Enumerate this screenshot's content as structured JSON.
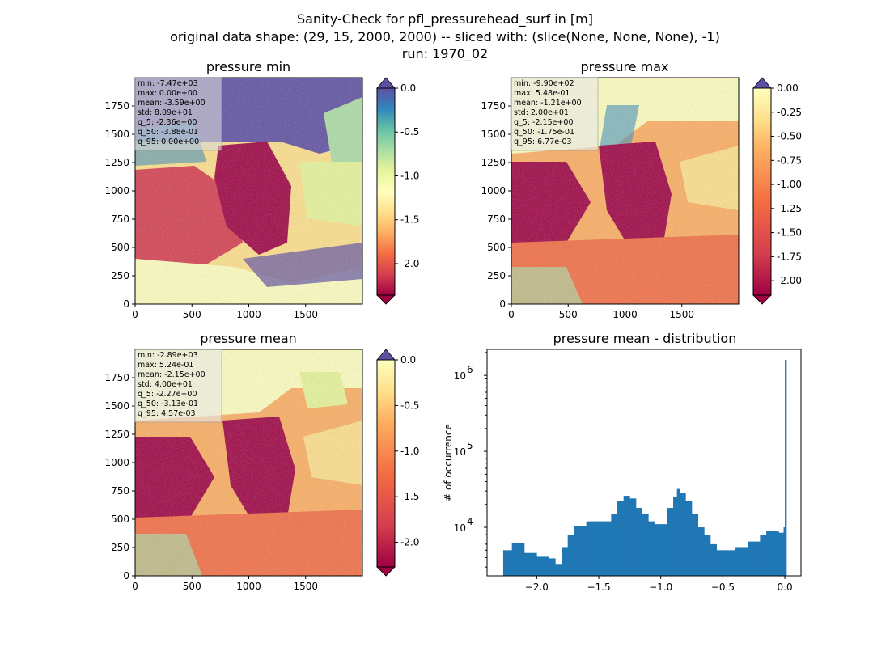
{
  "figure": {
    "title_lines": [
      "Sanity-Check for pfl_pressurehead_surf in [m]",
      "original data shape: (29, 15, 2000, 2000) -- sliced with: (slice(None, None, None), -1)",
      "run: 1970_02"
    ]
  },
  "panels": [
    {
      "title": "pressure min",
      "colormap": "Spectral",
      "colorbar": {
        "min": -2.36,
        "max": 0.0,
        "ticks": [
          "0.0",
          "-0.5",
          "-1.0",
          "-1.5",
          "-2.0"
        ],
        "tick_values": [
          0,
          -0.5,
          -1.0,
          -1.5,
          -2.0
        ],
        "extend_top_color": "#5e4fa2",
        "extend_bottom_color": "#9e0142"
      },
      "x_ticks": [
        "0",
        "500",
        "1000",
        "1500"
      ],
      "y_ticks": [
        "0",
        "250",
        "500",
        "750",
        "1000",
        "1250",
        "1500",
        "1750"
      ],
      "stats": [
        "min: -7.47e+03",
        "max: 0.00e+00",
        "mean: -3.59e+00",
        "std: 8.09e+01",
        "q_5: -2.36e+00",
        "q_50: -3.88e-01",
        "q_95: 0.00e+00"
      ]
    },
    {
      "title": "pressure max",
      "colormap": "Spectral",
      "colorbar": {
        "min": -2.15,
        "max": 0.0,
        "ticks": [
          "0.00",
          "-0.25",
          "-0.50",
          "-0.75",
          "-1.00",
          "-1.25",
          "-1.50",
          "-1.75",
          "-2.00"
        ],
        "tick_values": [
          0,
          -0.25,
          -0.5,
          -0.75,
          -1.0,
          -1.25,
          -1.5,
          -1.75,
          -2.0
        ],
        "extend_top_color": "#5e4fa2",
        "extend_bottom_color": "#9e0142"
      },
      "x_ticks": [
        "0",
        "500",
        "1000",
        "1500"
      ],
      "y_ticks": [
        "0",
        "250",
        "500",
        "750",
        "1000",
        "1250",
        "1500",
        "1750"
      ],
      "stats": [
        "min: -9.90e+02",
        "max: 5.48e-01",
        "mean: -1.21e+00",
        "std: 2.00e+01",
        "q_5: -2.15e+00",
        "q_50: -1.75e-01",
        "q_95: 6.77e-03"
      ]
    },
    {
      "title": "pressure mean",
      "colormap": "Spectral",
      "colorbar": {
        "min": -2.27,
        "max": 0.0,
        "ticks": [
          "0.0",
          "-0.5",
          "-1.0",
          "-1.5",
          "-2.0"
        ],
        "tick_values": [
          0,
          -0.5,
          -1.0,
          -1.5,
          -2.0
        ],
        "extend_top_color": "#5e4fa2",
        "extend_bottom_color": "#9e0142"
      },
      "x_ticks": [
        "0",
        "500",
        "1000",
        "1500"
      ],
      "y_ticks": [
        "0",
        "250",
        "500",
        "750",
        "1000",
        "1250",
        "1500",
        "1750"
      ],
      "stats": [
        "min: -2.89e+03",
        "max: 5.24e-01",
        "mean: -2.15e+00",
        "std: 4.00e+01",
        "q_5: -2.27e+00",
        "q_50: -3.13e-01",
        "q_95: 4.57e-03"
      ]
    }
  ],
  "chart_data": {
    "type": "bar",
    "title": "pressure mean - distribution",
    "xlabel": "",
    "ylabel": "# of occurrence",
    "y_scale": "log",
    "ylim": [
      2300,
      2200000
    ],
    "xlim": [
      -2.4,
      0.13
    ],
    "bar_color": "#1f77b4",
    "x_ticks": [
      -2.0,
      -1.5,
      -1.0,
      -0.5,
      0.0
    ],
    "x_tick_labels": [
      "−2.0",
      "−1.5",
      "−1.0",
      "−0.5",
      "0.0"
    ],
    "y_ticks": [
      10000,
      100000,
      1000000
    ],
    "y_tick_base": "10",
    "y_tick_exponents": [
      "4",
      "5",
      "6"
    ],
    "bins_x": [
      -2.27,
      -2.2,
      -2.1,
      -2.0,
      -1.9,
      -1.85,
      -1.8,
      -1.75,
      -1.7,
      -1.6,
      -1.5,
      -1.4,
      -1.35,
      -1.3,
      -1.25,
      -1.2,
      -1.15,
      -1.1,
      -1.05,
      -1.0,
      -0.95,
      -0.9,
      -0.87,
      -0.85,
      -0.8,
      -0.75,
      -0.7,
      -0.65,
      -0.6,
      -0.55,
      -0.5,
      -0.4,
      -0.3,
      -0.2,
      -0.15,
      -0.1,
      -0.05,
      -0.01,
      0.0
    ],
    "bins_y": [
      5000,
      6200,
      4600,
      4100,
      3900,
      3300,
      5500,
      8000,
      10500,
      12000,
      12000,
      15000,
      22000,
      26000,
      24000,
      18000,
      15000,
      12000,
      11000,
      11000,
      18000,
      25000,
      32000,
      28000,
      22000,
      15000,
      10000,
      8000,
      6000,
      5000,
      5000,
      5500,
      6500,
      8000,
      9000,
      9000,
      8500,
      10000,
      1600000
    ]
  }
}
